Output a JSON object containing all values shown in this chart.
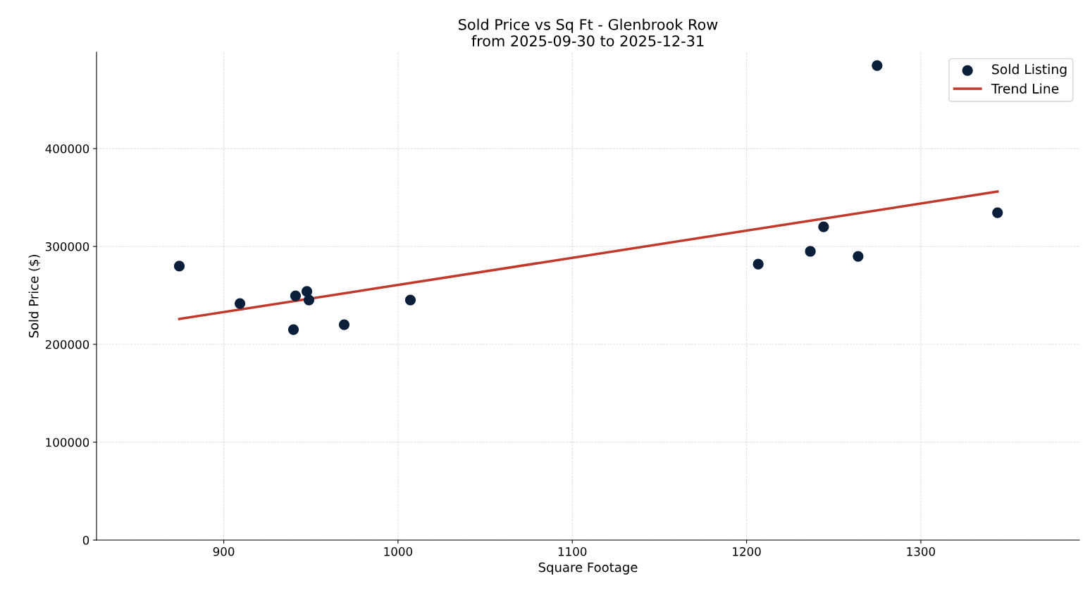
{
  "chart_data": {
    "type": "scatter",
    "title": "Sold Price vs Sq Ft - Glenbrook Row\nfrom 2025-09-30 to 2025-12-31",
    "xlabel": "Square Footage",
    "ylabel": "Sold Price ($)",
    "series": [
      {
        "name": "Sold Listing",
        "color": "#0b1f3a",
        "marker": "circle",
        "x": [
          874.5,
          909.3,
          940.0,
          941.2,
          947.7,
          948.9,
          969.1,
          1007.1,
          1206.7,
          1236.6,
          1244.2,
          1264.0,
          1274.9,
          1344.0
        ],
        "values": [
          279900,
          241700,
          215100,
          249600,
          254000,
          245300,
          220100,
          245300,
          282000,
          295000,
          320100,
          289900,
          484900,
          334500
        ]
      },
      {
        "name": "Trend Line",
        "type": "line",
        "color": "#c0392b",
        "line_style": "solid",
        "x": [
          874.5,
          1344.0
        ],
        "values": [
          225900,
          356100
        ]
      }
    ],
    "xlim": [
      827,
      1391
    ],
    "ylim": [
      0,
      498600
    ],
    "xticks": [
      900,
      1000,
      1100,
      1200,
      1300
    ],
    "yticks": [
      0,
      100000,
      200000,
      300000,
      400000
    ],
    "grid": true,
    "legend": "top right"
  }
}
